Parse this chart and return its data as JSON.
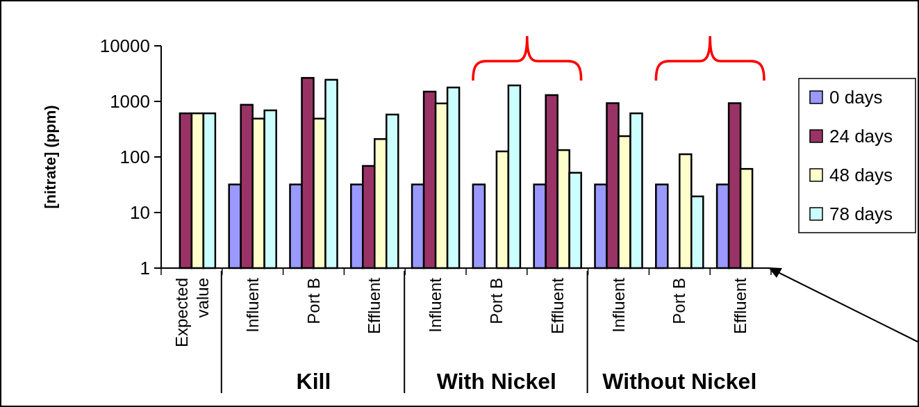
{
  "chart_data": {
    "type": "bar",
    "ylabel": "[nitrate] (ppm)",
    "categories": [
      "Expected value",
      "Influent",
      "Port B",
      "Effluent",
      "Influent",
      "Port B",
      "Effluent",
      "Influent",
      "Port B",
      "Effluent"
    ],
    "series": [
      {
        "name": "0 days",
        "color": "#9999ff",
        "values": [
          null,
          32,
          32,
          32,
          32,
          32,
          32,
          32,
          32,
          32
        ]
      },
      {
        "name": "24 days",
        "color": "#993366",
        "values": [
          610,
          870,
          2650,
          69,
          1500,
          null,
          1300,
          930,
          null,
          930
        ]
      },
      {
        "name": "48 days",
        "color": "#ffffcc",
        "values": [
          610,
          490,
          490,
          210,
          920,
          126,
          133,
          237,
          112,
          61
        ]
      },
      {
        "name": "78 days",
        "color": "#ccffff",
        "values": [
          610,
          690,
          2450,
          580,
          1780,
          1940,
          52,
          610,
          19.5,
          null
        ]
      }
    ],
    "ylim": [
      1,
      10000
    ],
    "yticks": [
      1,
      10,
      100,
      1000,
      10000
    ],
    "log": true,
    "legend": "right",
    "annotations": [
      "Kill",
      "With Nickel",
      "Without Nickel"
    ]
  }
}
